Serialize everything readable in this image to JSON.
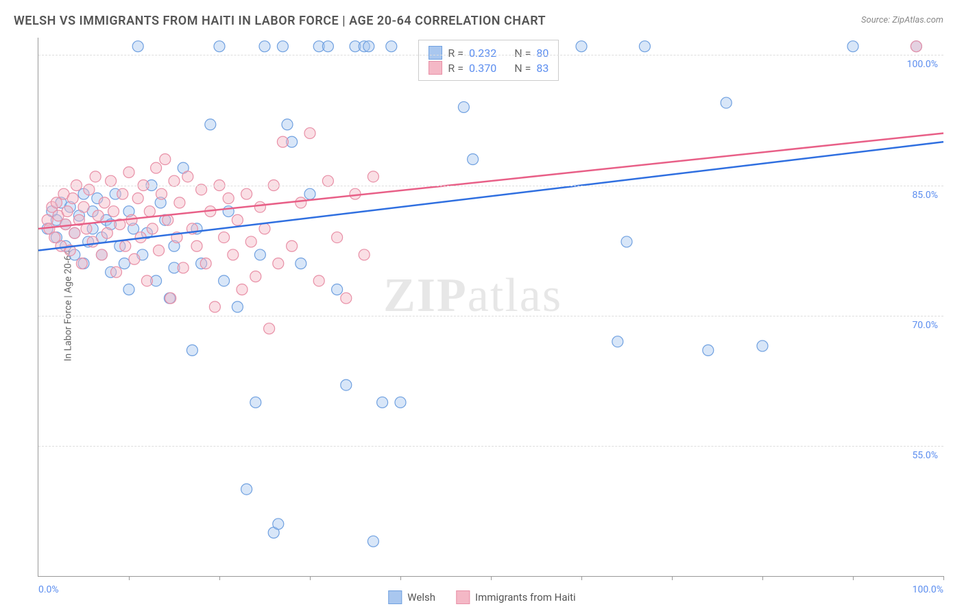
{
  "title": "WELSH VS IMMIGRANTS FROM HAITI IN LABOR FORCE | AGE 20-64 CORRELATION CHART",
  "source": "Source: ZipAtlas.com",
  "ylabel": "In Labor Force | Age 20-64",
  "watermark_bold": "ZIP",
  "watermark_rest": "atlas",
  "chart": {
    "type": "scatter",
    "xlim": [
      0,
      100
    ],
    "ylim": [
      40,
      102
    ],
    "y_ticks": [
      55.0,
      70.0,
      85.0,
      100.0
    ],
    "y_tick_labels": [
      "55.0%",
      "70.0%",
      "85.0%",
      "100.0%"
    ],
    "x_ticks": [
      10,
      20,
      30,
      40,
      50,
      60,
      70,
      80,
      90,
      100
    ],
    "x_left_label": "0.0%",
    "x_right_label": "100.0%",
    "background_color": "#ffffff",
    "grid_color": "#dddddd",
    "axis_color": "#999999",
    "tick_label_color": "#5b8def",
    "marker_radius": 8,
    "marker_opacity": 0.45,
    "line_width": 2.5,
    "series": [
      {
        "name": "Welsh",
        "fill": "#a9c7ef",
        "stroke": "#6fa0e0",
        "line_color": "#2f6fe0",
        "R": "0.232",
        "N": "80",
        "regression": {
          "x1": 0,
          "y1": 77.5,
          "x2": 100,
          "y2": 90.0
        },
        "points": [
          [
            1,
            80
          ],
          [
            1.5,
            82
          ],
          [
            2,
            81
          ],
          [
            2,
            79
          ],
          [
            2.5,
            83
          ],
          [
            3,
            78
          ],
          [
            3,
            80.5
          ],
          [
            3.5,
            82.5
          ],
          [
            4,
            77
          ],
          [
            4,
            79.5
          ],
          [
            4.5,
            81.5
          ],
          [
            5,
            84
          ],
          [
            5,
            76
          ],
          [
            5.5,
            78.5
          ],
          [
            6,
            80
          ],
          [
            6,
            82
          ],
          [
            6.5,
            83.5
          ],
          [
            7,
            77
          ],
          [
            7,
            79
          ],
          [
            7.5,
            81
          ],
          [
            8,
            75
          ],
          [
            8,
            80.5
          ],
          [
            8.5,
            84
          ],
          [
            9,
            78
          ],
          [
            9.5,
            76
          ],
          [
            10,
            82
          ],
          [
            10,
            73
          ],
          [
            10.5,
            80
          ],
          [
            11,
            101
          ],
          [
            11.5,
            77
          ],
          [
            12,
            79.5
          ],
          [
            12.5,
            85
          ],
          [
            13,
            74
          ],
          [
            13.5,
            83
          ],
          [
            14,
            81
          ],
          [
            14.5,
            72
          ],
          [
            15,
            78
          ],
          [
            15,
            75.5
          ],
          [
            16,
            87
          ],
          [
            17,
            66
          ],
          [
            17.5,
            80
          ],
          [
            18,
            76
          ],
          [
            19,
            92
          ],
          [
            20,
            101
          ],
          [
            20.5,
            74
          ],
          [
            21,
            82
          ],
          [
            22,
            71
          ],
          [
            23,
            50
          ],
          [
            24,
            60
          ],
          [
            24.5,
            77
          ],
          [
            25,
            101
          ],
          [
            26,
            45
          ],
          [
            26.5,
            46
          ],
          [
            27,
            101
          ],
          [
            27.5,
            92
          ],
          [
            28,
            90
          ],
          [
            29,
            76
          ],
          [
            30,
            84
          ],
          [
            31,
            101
          ],
          [
            32,
            101
          ],
          [
            33,
            73
          ],
          [
            34,
            62
          ],
          [
            35,
            101
          ],
          [
            36,
            101
          ],
          [
            36.5,
            101
          ],
          [
            37,
            44
          ],
          [
            38,
            60
          ],
          [
            39,
            101
          ],
          [
            40,
            60
          ],
          [
            47,
            94
          ],
          [
            48,
            88
          ],
          [
            60,
            101
          ],
          [
            64,
            67
          ],
          [
            65,
            78.5
          ],
          [
            67,
            101
          ],
          [
            74,
            66
          ],
          [
            76,
            94.5
          ],
          [
            80,
            66.5
          ],
          [
            90,
            101
          ],
          [
            97,
            101
          ]
        ]
      },
      {
        "name": "Immigrants from Haiti",
        "fill": "#f4b8c6",
        "stroke": "#e88fa6",
        "line_color": "#e85f87",
        "R": "0.370",
        "N": "83",
        "regression": {
          "x1": 0,
          "y1": 80.0,
          "x2": 100,
          "y2": 91.0
        },
        "points": [
          [
            1,
            81
          ],
          [
            1.2,
            80
          ],
          [
            1.5,
            82.5
          ],
          [
            1.8,
            79
          ],
          [
            2,
            83
          ],
          [
            2.2,
            81.5
          ],
          [
            2.5,
            78
          ],
          [
            2.8,
            84
          ],
          [
            3,
            80.5
          ],
          [
            3.2,
            82
          ],
          [
            3.5,
            77.5
          ],
          [
            3.8,
            83.5
          ],
          [
            4,
            79.5
          ],
          [
            4.2,
            85
          ],
          [
            4.5,
            81
          ],
          [
            4.8,
            76
          ],
          [
            5,
            82.5
          ],
          [
            5.3,
            80
          ],
          [
            5.6,
            84.5
          ],
          [
            6,
            78.5
          ],
          [
            6.3,
            86
          ],
          [
            6.6,
            81.5
          ],
          [
            7,
            77
          ],
          [
            7.3,
            83
          ],
          [
            7.6,
            79.5
          ],
          [
            8,
            85.5
          ],
          [
            8.3,
            82
          ],
          [
            8.6,
            75
          ],
          [
            9,
            80.5
          ],
          [
            9.3,
            84
          ],
          [
            9.6,
            78
          ],
          [
            10,
            86.5
          ],
          [
            10.3,
            81
          ],
          [
            10.6,
            76.5
          ],
          [
            11,
            83.5
          ],
          [
            11.3,
            79
          ],
          [
            11.6,
            85
          ],
          [
            12,
            74
          ],
          [
            12.3,
            82
          ],
          [
            12.6,
            80
          ],
          [
            13,
            87
          ],
          [
            13.3,
            77.5
          ],
          [
            13.6,
            84
          ],
          [
            14,
            88
          ],
          [
            14.3,
            81
          ],
          [
            14.6,
            72
          ],
          [
            15,
            85.5
          ],
          [
            15.3,
            79
          ],
          [
            15.6,
            83
          ],
          [
            16,
            75.5
          ],
          [
            16.5,
            86
          ],
          [
            17,
            80
          ],
          [
            17.5,
            78
          ],
          [
            18,
            84.5
          ],
          [
            18.5,
            76
          ],
          [
            19,
            82
          ],
          [
            19.5,
            71
          ],
          [
            20,
            85
          ],
          [
            20.5,
            79
          ],
          [
            21,
            83.5
          ],
          [
            21.5,
            77
          ],
          [
            22,
            81
          ],
          [
            22.5,
            73
          ],
          [
            23,
            84
          ],
          [
            23.5,
            78.5
          ],
          [
            24,
            74.5
          ],
          [
            24.5,
            82.5
          ],
          [
            25,
            80
          ],
          [
            25.5,
            68.5
          ],
          [
            26,
            85
          ],
          [
            26.5,
            76
          ],
          [
            27,
            90
          ],
          [
            28,
            78
          ],
          [
            29,
            83
          ],
          [
            30,
            91
          ],
          [
            31,
            74
          ],
          [
            32,
            85.5
          ],
          [
            33,
            79
          ],
          [
            34,
            72
          ],
          [
            35,
            84
          ],
          [
            36,
            77
          ],
          [
            37,
            86
          ],
          [
            97,
            101
          ]
        ]
      }
    ]
  },
  "stats_labels": {
    "R": "R  =",
    "N": "N  ="
  },
  "legend": {
    "welsh": "Welsh",
    "haiti": "Immigrants from Haiti"
  }
}
